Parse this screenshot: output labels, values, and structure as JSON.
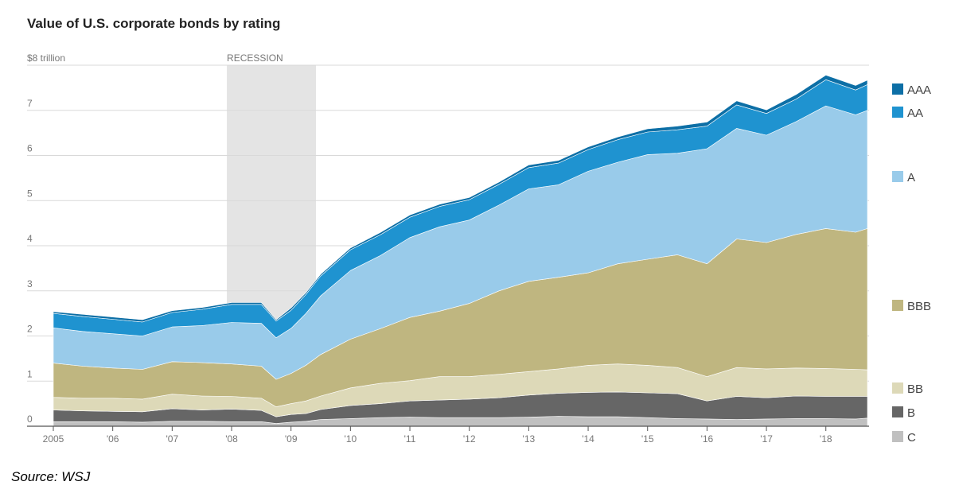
{
  "footer": {
    "source": "Source:  WSJ"
  },
  "chart_data": {
    "type": "area",
    "stacked": true,
    "title": "Value of U.S. corporate bonds by rating",
    "unit": "$ trillion",
    "ylim": [
      0,
      8
    ],
    "y_ticks": [
      {
        "value": 0,
        "label": "0"
      },
      {
        "value": 1,
        "label": "1"
      },
      {
        "value": 2,
        "label": "2"
      },
      {
        "value": 3,
        "label": "3"
      },
      {
        "value": 4,
        "label": "4"
      },
      {
        "value": 5,
        "label": "5"
      },
      {
        "value": 6,
        "label": "6"
      },
      {
        "value": 7,
        "label": "7"
      },
      {
        "value": 8,
        "label": "$8 trillion"
      }
    ],
    "xlim": [
      2005,
      2018.7
    ],
    "x_ticks": [
      {
        "value": 2005,
        "label": "2005"
      },
      {
        "value": 2006,
        "label": "'06"
      },
      {
        "value": 2007,
        "label": "'07"
      },
      {
        "value": 2008,
        "label": "'08"
      },
      {
        "value": 2009,
        "label": "'09"
      },
      {
        "value": 2010,
        "label": "'10"
      },
      {
        "value": 2011,
        "label": "'11"
      },
      {
        "value": 2012,
        "label": "'12"
      },
      {
        "value": 2013,
        "label": "'13"
      },
      {
        "value": 2014,
        "label": "'14"
      },
      {
        "value": 2015,
        "label": "'15"
      },
      {
        "value": 2016,
        "label": "'16"
      },
      {
        "value": 2017,
        "label": "'17"
      },
      {
        "value": 2018,
        "label": "'18"
      }
    ],
    "shaded_regions": [
      {
        "label": "RECESSION",
        "start": 2007.92,
        "end": 2009.42
      }
    ],
    "grid": "horizontal",
    "legend_position": "right",
    "x": [
      2005.0,
      2005.5,
      2006.0,
      2006.5,
      2007.0,
      2007.5,
      2008.0,
      2008.5,
      2008.75,
      2009.0,
      2009.25,
      2009.5,
      2010.0,
      2010.5,
      2011.0,
      2011.5,
      2012.0,
      2012.5,
      2013.0,
      2013.5,
      2014.0,
      2014.5,
      2015.0,
      2015.5,
      2016.0,
      2016.5,
      2017.0,
      2017.5,
      2018.0,
      2018.5,
      2018.7
    ],
    "series": [
      {
        "name": "C",
        "color": "#c0c0c0",
        "values": [
          0.1,
          0.1,
          0.1,
          0.09,
          0.11,
          0.11,
          0.1,
          0.1,
          0.06,
          0.09,
          0.11,
          0.15,
          0.17,
          0.19,
          0.2,
          0.19,
          0.19,
          0.19,
          0.2,
          0.22,
          0.21,
          0.21,
          0.19,
          0.17,
          0.16,
          0.15,
          0.16,
          0.17,
          0.17,
          0.16,
          0.18
        ]
      },
      {
        "name": "B",
        "color": "#666666",
        "values": [
          0.26,
          0.24,
          0.23,
          0.23,
          0.28,
          0.25,
          0.28,
          0.25,
          0.15,
          0.17,
          0.17,
          0.22,
          0.29,
          0.31,
          0.36,
          0.39,
          0.41,
          0.44,
          0.49,
          0.51,
          0.54,
          0.55,
          0.55,
          0.55,
          0.4,
          0.51,
          0.47,
          0.5,
          0.49,
          0.5,
          0.48
        ]
      },
      {
        "name": "BB",
        "color": "#ddd9b8",
        "values": [
          0.28,
          0.28,
          0.29,
          0.28,
          0.32,
          0.31,
          0.28,
          0.27,
          0.22,
          0.24,
          0.28,
          0.3,
          0.39,
          0.45,
          0.45,
          0.52,
          0.5,
          0.52,
          0.52,
          0.54,
          0.6,
          0.62,
          0.61,
          0.58,
          0.54,
          0.64,
          0.64,
          0.62,
          0.62,
          0.6,
          0.59
        ]
      },
      {
        "name": "BBB",
        "color": "#bfb680",
        "values": [
          0.76,
          0.71,
          0.67,
          0.66,
          0.72,
          0.74,
          0.72,
          0.71,
          0.61,
          0.67,
          0.79,
          0.92,
          1.08,
          1.21,
          1.4,
          1.45,
          1.62,
          1.85,
          2.0,
          2.03,
          2.05,
          2.22,
          2.35,
          2.5,
          2.5,
          2.85,
          2.8,
          2.96,
          3.1,
          3.04,
          3.13
        ]
      },
      {
        "name": "A",
        "color": "#99cbea",
        "values": [
          0.78,
          0.77,
          0.76,
          0.74,
          0.77,
          0.82,
          0.92,
          0.95,
          0.92,
          1.0,
          1.15,
          1.3,
          1.52,
          1.62,
          1.77,
          1.87,
          1.85,
          1.9,
          2.05,
          2.05,
          2.25,
          2.25,
          2.32,
          2.25,
          2.55,
          2.45,
          2.38,
          2.5,
          2.72,
          2.6,
          2.62
        ]
      },
      {
        "name": "AA",
        "color": "#1f93d0",
        "values": [
          0.32,
          0.33,
          0.32,
          0.31,
          0.32,
          0.36,
          0.4,
          0.42,
          0.37,
          0.4,
          0.42,
          0.44,
          0.46,
          0.46,
          0.45,
          0.45,
          0.45,
          0.46,
          0.47,
          0.48,
          0.48,
          0.5,
          0.5,
          0.52,
          0.5,
          0.52,
          0.48,
          0.5,
          0.58,
          0.55,
          0.57
        ]
      },
      {
        "name": "AAA",
        "color": "#0d6fa6",
        "values": [
          0.04,
          0.05,
          0.05,
          0.05,
          0.04,
          0.04,
          0.04,
          0.04,
          0.03,
          0.05,
          0.04,
          0.04,
          0.04,
          0.05,
          0.05,
          0.05,
          0.05,
          0.05,
          0.06,
          0.06,
          0.06,
          0.06,
          0.07,
          0.08,
          0.09,
          0.09,
          0.08,
          0.1,
          0.1,
          0.1,
          0.1
        ]
      }
    ]
  }
}
